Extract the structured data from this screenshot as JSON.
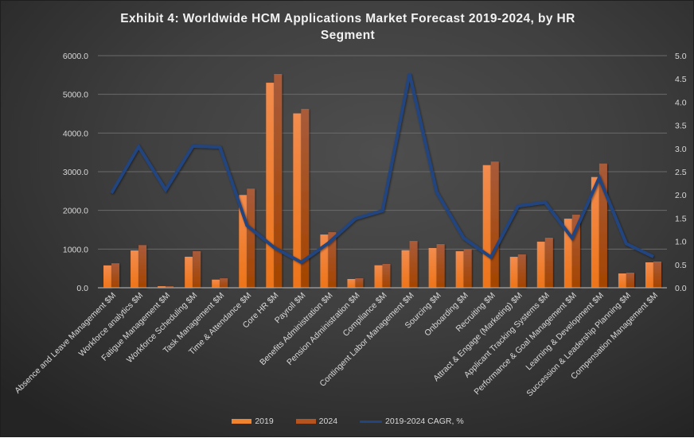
{
  "title_line1": "Exhibit  4: Worldwide  HCM Applications  Market Forecast  2019-2024, by  HR",
  "title_line2": "Segment",
  "colors": {
    "bar_2019": "#f0832e",
    "bar_2024": "#b5541e",
    "line_cagr": "#23457f",
    "gridline": "#6a6a6a",
    "axis_text": "#d9d9d9"
  },
  "legend": [
    {
      "label": "2019",
      "kind": "bar",
      "color": "#f0832e"
    },
    {
      "label": "2024",
      "kind": "bar",
      "color": "#b5541e"
    },
    {
      "label": "2019-2024 CAGR, %",
      "kind": "line",
      "color": "#23457f"
    }
  ],
  "chart_data": {
    "type": "bar+line",
    "title": "Exhibit 4: Worldwide HCM Applications Market Forecast 2019-2024, by HR Segment",
    "xlabel": "",
    "ylabel": "",
    "ylim": [
      0,
      6000
    ],
    "y_ticks": [
      "0.0",
      "1000.0",
      "2000.0",
      "3000.0",
      "4000.0",
      "5000.0",
      "6000.0"
    ],
    "y2lim": [
      0,
      5.0
    ],
    "y2_ticks": [
      "0.0",
      "0.5",
      "1.0",
      "1.5",
      "2.0",
      "2.5",
      "3.0",
      "3.5",
      "4.0",
      "4.5",
      "5.0"
    ],
    "grid": true,
    "legend_position": "bottom",
    "categories": [
      "Absence and Leave Management $M",
      "Workforce analytics $M",
      "Fatigue Management $M",
      "Workforce Scheduling $M",
      "Task Management $M",
      "Time & Attendance $M",
      "Core HR $M",
      "Payroll $M",
      "Benefits Administration $M",
      "Pension Administration $M",
      "Compliance $M",
      "Contingent Labor Management $M",
      "Sourcing $M",
      "Onboarding $M",
      "Recruiting $M",
      "Attract & Engage (Marketing) $M",
      "Applicant Tracking Systems $M",
      "Performance & Goal Management $M",
      "Learning & Development $M",
      "Succession & Leadership Planning $M",
      "Compensation Management $M"
    ],
    "series": [
      {
        "name": "2019",
        "type": "bar",
        "axis": "left",
        "values": [
          578,
          965,
          40,
          802,
          210,
          2398,
          5300,
          4508,
          1376,
          226,
          581,
          971,
          1027,
          944,
          3170,
          800,
          1191,
          1786,
          2862,
          370,
          657
        ]
      },
      {
        "name": "2024",
        "type": "bar",
        "axis": "left",
        "values": [
          633,
          1102,
          40,
          945,
          245,
          2562,
          5527,
          4625,
          1437,
          246,
          616,
          1211,
          1129,
          1000,
          3262,
          862,
          1294,
          1889,
          3211,
          390,
          678
        ]
      },
      {
        "name": "2019-2024 CAGR, %",
        "type": "line",
        "axis": "right",
        "values": [
          2.04,
          3.04,
          2.11,
          3.05,
          3.03,
          1.34,
          0.87,
          0.55,
          0.96,
          1.49,
          1.66,
          4.61,
          2.06,
          1.07,
          0.66,
          1.76,
          1.84,
          1.07,
          2.37,
          0.95,
          0.67
        ]
      }
    ]
  }
}
